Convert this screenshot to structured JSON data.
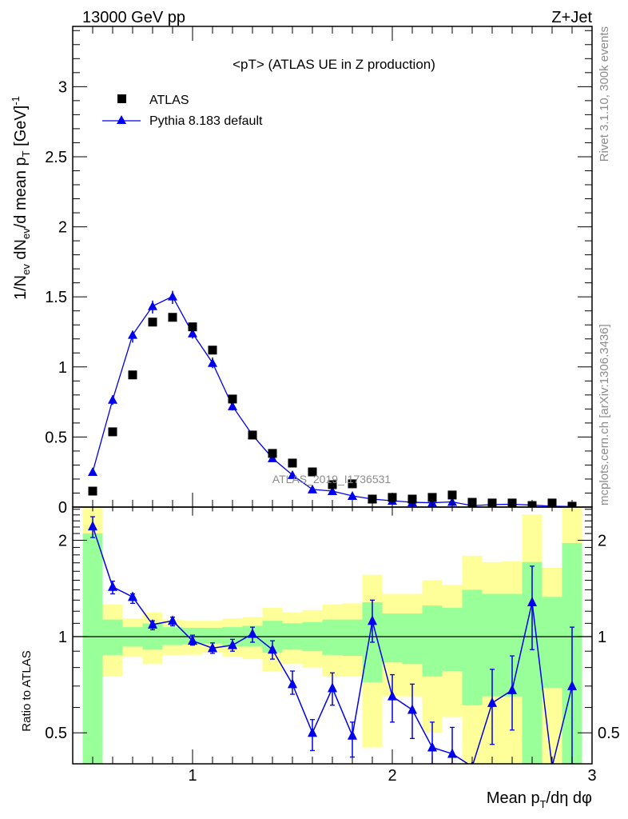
{
  "header": {
    "left": "13000 GeV pp",
    "right": "Z+Jet"
  },
  "side": {
    "rivet": "Rivet 3.1.10,  300k events",
    "mcplots": "mcplots.cern.ch [arXiv:1306.3436]"
  },
  "watermark": "ATLAS_2019_I1736531",
  "chart_data": {
    "type": "scatter",
    "title": "<pT> (ATLAS UE in Z production)",
    "ylabel_parts": [
      "1/N",
      "ev",
      " dN",
      "ev",
      "/d mean p",
      "T",
      " [GeV]",
      "-1"
    ],
    "xlabel_parts": [
      "Mean p",
      "T",
      "/dη dφ"
    ],
    "ratio_ylabel": "Ratio to ATLAS",
    "xlim": [
      0.4,
      3.0
    ],
    "ylim": [
      0,
      3.43
    ],
    "ratio_ylim": [
      0.4,
      2.54
    ],
    "ratio_scale": "log",
    "x_ticks": [
      "1",
      "2",
      "3"
    ],
    "y_ticks": [
      "0",
      "0.5",
      "1",
      "1.5",
      "2",
      "2.5",
      "3"
    ],
    "ratio_ticks": [
      "0.5",
      "1",
      "2"
    ],
    "legend": {
      "placement": "top-left",
      "entries": [
        "ATLAS",
        "Pythia 8.183 default"
      ]
    },
    "colors": {
      "data": "#000000",
      "mc": "#0000ee",
      "band_total": "#ffff99",
      "band_stat": "#99ff99"
    },
    "x": [
      0.5,
      0.6,
      0.7,
      0.8,
      0.9,
      1.0,
      1.1,
      1.2,
      1.3,
      1.4,
      1.5,
      1.6,
      1.7,
      1.8,
      1.9,
      2.0,
      2.1,
      2.2,
      2.3,
      2.4,
      2.5,
      2.6,
      2.7,
      2.8,
      2.9
    ],
    "bin_width": 0.1,
    "series": [
      {
        "name": "ATLAS",
        "values": [
          0.114,
          0.537,
          0.943,
          1.32,
          1.354,
          1.286,
          1.12,
          0.771,
          0.514,
          0.383,
          0.314,
          0.251,
          0.16,
          0.166,
          0.057,
          0.069,
          0.057,
          0.069,
          0.086,
          0.034,
          0.029,
          0.029,
          0.011,
          0.029,
          0.006
        ]
      },
      {
        "name": "Pythia 8.183 default",
        "values": [
          0.251,
          0.766,
          1.229,
          1.434,
          1.503,
          1.24,
          1.029,
          0.72,
          0.514,
          0.349,
          0.229,
          0.126,
          0.114,
          0.08,
          0.057,
          0.045,
          0.034,
          0.031,
          0.037,
          0.01,
          0.018,
          0.02,
          0.014,
          0.006,
          0.004
        ]
      }
    ],
    "ratio": {
      "values": [
        2.21,
        1.43,
        1.33,
        1.09,
        1.12,
        0.97,
        0.92,
        0.94,
        1.02,
        0.91,
        0.71,
        0.5,
        0.69,
        0.49,
        1.12,
        0.65,
        0.59,
        0.45,
        0.43,
        0.3,
        0.62,
        0.68,
        1.28,
        0.2,
        0.7
      ],
      "err_hi": [
        2.37,
        1.49,
        1.36,
        1.12,
        1.15,
        1.01,
        0.955,
        0.98,
        1.07,
        0.97,
        0.78,
        0.55,
        0.77,
        0.54,
        1.3,
        0.76,
        0.71,
        0.54,
        0.52,
        null,
        0.79,
        0.87,
        1.66,
        null,
        1.07
      ],
      "err_lo": [
        2.04,
        1.36,
        1.27,
        1.05,
        1.08,
        0.94,
        0.886,
        0.9,
        0.96,
        0.85,
        0.66,
        0.44,
        0.61,
        0.42,
        0.96,
        0.54,
        0.48,
        0.4,
        0.4,
        null,
        0.46,
        0.51,
        0.91,
        null,
        0.4
      ],
      "band_total_hi": [
        2.6,
        1.26,
        1.14,
        1.19,
        1.13,
        1.12,
        1.12,
        1.14,
        1.15,
        1.23,
        1.19,
        1.21,
        1.26,
        1.27,
        1.56,
        1.36,
        1.36,
        1.5,
        1.45,
        1.79,
        1.71,
        1.72,
        2.41,
        1.64,
        2.6
      ],
      "band_total_lo": [
        0.4,
        0.75,
        0.866,
        0.82,
        0.876,
        0.877,
        0.89,
        0.866,
        0.85,
        0.78,
        0.82,
        0.8,
        0.75,
        0.75,
        0.45,
        0.65,
        0.65,
        0.5,
        0.56,
        0.3,
        0.3,
        0.3,
        0.3,
        0.3,
        0.3
      ],
      "band_stat_hi": [
        2.1,
        1.13,
        1.07,
        1.1,
        1.07,
        1.065,
        1.065,
        1.07,
        1.08,
        1.12,
        1.1,
        1.11,
        1.13,
        1.13,
        1.28,
        1.18,
        1.18,
        1.25,
        1.23,
        1.4,
        1.36,
        1.36,
        1.71,
        1.33,
        1.96
      ],
      "band_stat_lo": [
        0.4,
        0.876,
        0.93,
        0.91,
        0.94,
        0.945,
        0.95,
        0.93,
        0.93,
        0.89,
        0.91,
        0.9,
        0.876,
        0.87,
        0.72,
        0.83,
        0.82,
        0.75,
        0.78,
        0.61,
        0.65,
        0.65,
        0.3,
        0.69,
        0.3
      ]
    }
  }
}
